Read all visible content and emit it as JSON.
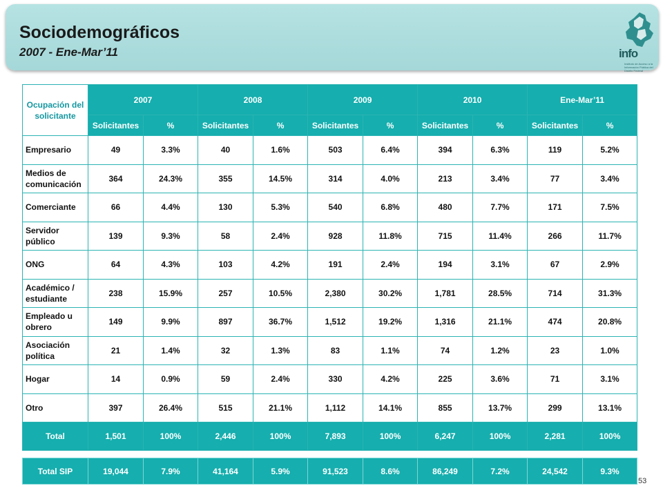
{
  "header": {
    "title": "Sociodemográficos",
    "subtitle": "2007 - Ene-Mar’11",
    "logo_word": "info",
    "logo_caption": "Instituto de Acceso a la Información Pública del Distrito Federal"
  },
  "table": {
    "occupation_header": "Ocupación del solicitante",
    "periods": [
      "2007",
      "2008",
      "2009",
      "2010",
      "Ene-Mar’11"
    ],
    "subheaders": [
      "Solicitantes",
      "%"
    ],
    "rows": [
      {
        "label": "Empresario",
        "values": [
          "49",
          "3.3%",
          "40",
          "1.6%",
          "503",
          "6.4%",
          "394",
          "6.3%",
          "119",
          "5.2%"
        ]
      },
      {
        "label": "Medios de comunicación",
        "values": [
          "364",
          "24.3%",
          "355",
          "14.5%",
          "314",
          "4.0%",
          "213",
          "3.4%",
          "77",
          "3.4%"
        ]
      },
      {
        "label": "Comerciante",
        "values": [
          "66",
          "4.4%",
          "130",
          "5.3%",
          "540",
          "6.8%",
          "480",
          "7.7%",
          "171",
          "7.5%"
        ]
      },
      {
        "label": "Servidor público",
        "values": [
          "139",
          "9.3%",
          "58",
          "2.4%",
          "928",
          "11.8%",
          "715",
          "11.4%",
          "266",
          "11.7%"
        ]
      },
      {
        "label": "ONG",
        "values": [
          "64",
          "4.3%",
          "103",
          "4.2%",
          "191",
          "2.4%",
          "194",
          "3.1%",
          "67",
          "2.9%"
        ]
      },
      {
        "label": "Académico / estudiante",
        "values": [
          "238",
          "15.9%",
          "257",
          "10.5%",
          "2,380",
          "30.2%",
          "1,781",
          "28.5%",
          "714",
          "31.3%"
        ]
      },
      {
        "label": "Empleado u obrero",
        "values": [
          "149",
          "9.9%",
          "897",
          "36.7%",
          "1,512",
          "19.2%",
          "1,316",
          "21.1%",
          "474",
          "20.8%"
        ]
      },
      {
        "label": "Asociación política",
        "values": [
          "21",
          "1.4%",
          "32",
          "1.3%",
          "83",
          "1.1%",
          "74",
          "1.2%",
          "23",
          "1.0%"
        ]
      },
      {
        "label": "Hogar",
        "values": [
          "14",
          "0.9%",
          "59",
          "2.4%",
          "330",
          "4.2%",
          "225",
          "3.6%",
          "71",
          "3.1%"
        ]
      },
      {
        "label": "Otro",
        "values": [
          "397",
          "26.4%",
          "515",
          "21.1%",
          "1,112",
          "14.1%",
          "855",
          "13.7%",
          "299",
          "13.1%"
        ]
      }
    ],
    "total": {
      "label": "Total",
      "values": [
        "1,501",
        "100%",
        "2,446",
        "100%",
        "7,893",
        "100%",
        "6,247",
        "100%",
        "2,281",
        "100%"
      ]
    }
  },
  "sip": {
    "label": "Total SIP",
    "values": [
      "19,044",
      "7.9%",
      "41,164",
      "5.9%",
      "91,523",
      "8.6%",
      "86,249",
      "7.2%",
      "24,542",
      "9.3%"
    ]
  },
  "page_number": "53",
  "colors": {
    "accent": "#16aeae",
    "banner": "#a5d8d9"
  }
}
